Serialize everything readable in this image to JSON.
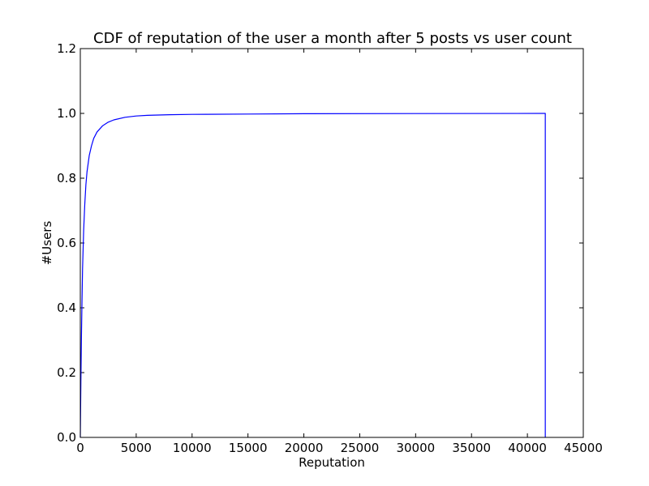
{
  "chart_data": {
    "type": "line",
    "title": "CDF of reputation of the user a month after 5 posts vs user count",
    "xlabel": "Reputation",
    "ylabel": "#Users",
    "xlim": [
      0,
      45000
    ],
    "ylim": [
      0,
      1.2
    ],
    "xticks": [
      0,
      5000,
      10000,
      15000,
      20000,
      25000,
      30000,
      35000,
      40000,
      45000
    ],
    "yticks": [
      0.0,
      0.2,
      0.4,
      0.6,
      0.8,
      1.0,
      1.2
    ],
    "xtick_labels": [
      "0",
      "5000",
      "10000",
      "15000",
      "20000",
      "25000",
      "30000",
      "35000",
      "40000",
      "45000"
    ],
    "ytick_labels": [
      "0.0",
      "0.2",
      "0.4",
      "0.6",
      "0.8",
      "1.0",
      "1.2"
    ],
    "grid": false,
    "series": [
      {
        "color": "#0000ff",
        "x": [
          0,
          50,
          100,
          150,
          200,
          300,
          400,
          500,
          600,
          800,
          1000,
          1200,
          1500,
          2000,
          2500,
          3000,
          4000,
          5000,
          6000,
          8000,
          10000,
          15000,
          20000,
          30000,
          41600,
          41600
        ],
        "y": [
          0.0,
          0.17,
          0.31,
          0.42,
          0.52,
          0.64,
          0.72,
          0.78,
          0.82,
          0.87,
          0.9,
          0.923,
          0.943,
          0.962,
          0.973,
          0.98,
          0.988,
          0.992,
          0.994,
          0.996,
          0.997,
          0.998,
          0.999,
          0.9995,
          1.0,
          0.0
        ]
      }
    ]
  }
}
